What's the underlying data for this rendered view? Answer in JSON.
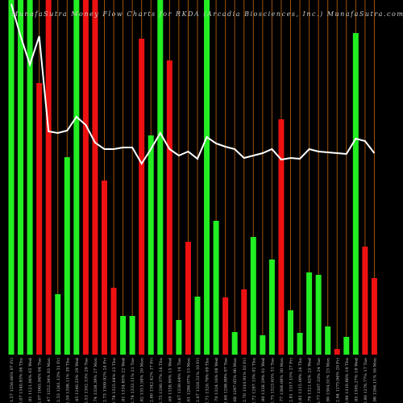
{
  "chart_data": {
    "type": "bar",
    "title": "MunafaSutra Money Flow Charts for RKDA (Arcadia Biosciences, Inc.) MunafaSutra.com",
    "categories": [
      "1.57 1256.66% 07 Fri",
      "2.07 1340.83% 06 Thu",
      "1.81 1121.06% 05 Wed",
      "2.07 1065.94% 04 Tue",
      "2.47 1252.34% 03 Mon",
      "2.53 1261.13% 31 Fri",
      "2.50 1308.11% 30 Thu",
      "2.45 1240.33% 29 Wed",
      "2.53 1302.15% 28 Tue",
      "2.74 1338.39% 27 Mon",
      "2.73 1309.92% 24 Fri",
      "2.78 1325.64% 23 Thu",
      "2.81 1334.85% 22 Wed",
      "2.74 1333.11% 21 Tue",
      "2.82 1313.58% 20 Mon",
      "2.80 1342.42% 17 Fri",
      "2.75 1290.37% 16 Thu",
      "2.69 1338.90% 15 Wed",
      "2.67 1330.64% 14 Tue",
      "2.61 1286.07% 13 Mon",
      "2.67 1326.51% 10 Fri",
      "2.71 1320.78% 09 Thu",
      "2.70 1324.16% 08 Wed",
      "2.69 1298.89% 07 Tue",
      "2.68 1297.05% 06 Mon",
      "2.70 1310.91% 03 Fri",
      "2.72 1287.13% 02 Thu",
      "2.80 1338.29% 01 Wed",
      "2.75 1323.65% 31 Tue",
      "2.77 1306.08% 30 Mon",
      "2.81 1317.15% 27 Fri",
      "2.85 1315.09% 26 Thu",
      "2.79 1321.62% 25 Wed",
      "2.77 1307.33% 24 Tue",
      "2.90 1304.51% 23 Mon",
      "2.94 1275.94% 20 Fri",
      "2.96 1310.86% 19 Thu",
      "2.85 1305.27% 18 Wed",
      "2.90 1276.77% 17 Tue",
      "2.98 1266.11% 16 Mon"
    ],
    "values": [
      440,
      440,
      440,
      337,
      440,
      75,
      245,
      440,
      440,
      440,
      216,
      83,
      48,
      48,
      392,
      272,
      440,
      365,
      43,
      140,
      72,
      440,
      166,
      71,
      28,
      81,
      146,
      24,
      118,
      292,
      55,
      27,
      102,
      99,
      35,
      7,
      22,
      399,
      134,
      95
    ],
    "bar_colors": [
      "#22ee22",
      "#22ee22",
      "#22ee22",
      "#ee1111",
      "#ee1111",
      "#22ee22",
      "#22ee22",
      "#22ee22",
      "#ee1111",
      "#ee1111",
      "#ee1111",
      "#ee1111",
      "#22ee22",
      "#22ee22",
      "#ee1111",
      "#22ee22",
      "#22ee22",
      "#ee1111",
      "#22ee22",
      "#ee1111",
      "#22ee22",
      "#22ee22",
      "#22ee22",
      "#ee1111",
      "#22ee22",
      "#ee1111",
      "#22ee22",
      "#22ee22",
      "#22ee22",
      "#ee1111",
      "#22ee22",
      "#22ee22",
      "#22ee22",
      "#22ee22",
      "#22ee22",
      "#ee1111",
      "#22ee22",
      "#22ee22",
      "#ee1111",
      "#ee1111"
    ],
    "line_values": [
      435,
      395,
      360,
      395,
      277,
      275,
      278,
      295,
      285,
      263,
      255,
      255,
      257,
      257,
      237,
      255,
      275,
      255,
      247,
      252,
      243,
      270,
      262,
      258,
      255,
      244,
      247,
      250,
      255,
      242,
      244,
      243,
      255,
      252,
      251,
      250,
      249,
      268,
      265,
      250
    ],
    "line_color": "#ffffff",
    "guide_color": "#a0520a",
    "background": "#000000",
    "ylim": [
      0,
      440
    ]
  }
}
